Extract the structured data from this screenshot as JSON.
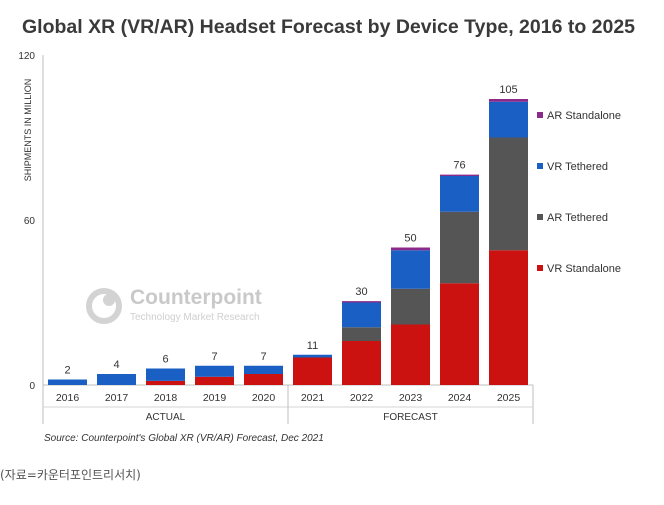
{
  "chart_data": {
    "type": "bar",
    "stacked": true,
    "title": "Global XR (VR/AR) Headset Forecast by Device Type, 2016 to 2025",
    "ylabel": "SHIPMENTS IN MILLION",
    "ylim": [
      0,
      120
    ],
    "yticks": [
      "0",
      "60",
      "120"
    ],
    "categories": [
      "2016",
      "2017",
      "2018",
      "2019",
      "2020",
      "2021",
      "2022",
      "2023",
      "2024",
      "2025"
    ],
    "groups": [
      {
        "label": "ACTUAL",
        "categories": [
          "2016",
          "2017",
          "2018",
          "2019",
          "2020"
        ]
      },
      {
        "label": "FORECAST",
        "categories": [
          "2021",
          "2022",
          "2023",
          "2024",
          "2025"
        ]
      }
    ],
    "totals": [
      "2",
      "4",
      "6",
      "7",
      "7",
      "11",
      "30",
      "50",
      "76",
      "105"
    ],
    "series": [
      {
        "name": "VR Standalone",
        "color": "#cc1111",
        "values": [
          0,
          0,
          1.5,
          3,
          4,
          10,
          16,
          22,
          37,
          49
        ]
      },
      {
        "name": "AR Tethered",
        "color": "#555555",
        "values": [
          0,
          0,
          0,
          0,
          0,
          0,
          5,
          13,
          26,
          41
        ]
      },
      {
        "name": "VR Tethered",
        "color": "#1a5fc4",
        "values": [
          2,
          4,
          4.5,
          4,
          3,
          1,
          9,
          14,
          13,
          13
        ]
      },
      {
        "name": "AR Standalone",
        "color": "#8b2a8b",
        "values": [
          0,
          0,
          0,
          0,
          0,
          0,
          0.5,
          1,
          0.5,
          1
        ]
      }
    ],
    "legend_position": "right",
    "grid": false
  },
  "watermark": {
    "name": "Counterpoint",
    "tagline": "Technology Market Research"
  },
  "source": "Source: Counterpoint's Global XR (VR/AR) Forecast, Dec 2021",
  "caption": "(자료=카운터포인트리서치)"
}
